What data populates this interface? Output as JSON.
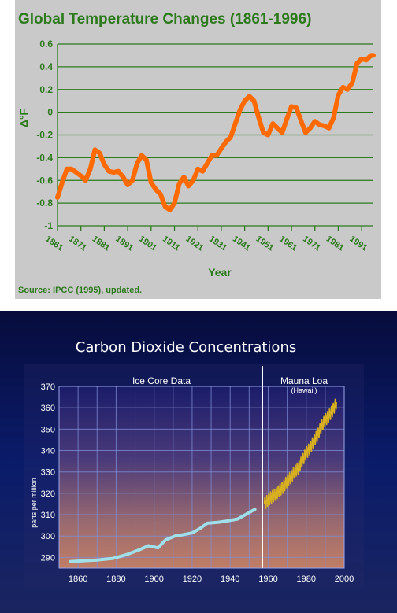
{
  "chart_data": [
    {
      "type": "line",
      "title": "Global Temperature Changes (1861-1996)",
      "xlabel": "Year",
      "ylabel": "Δ°F",
      "source": "Source: IPCC (1995), updated.",
      "xlim": [
        1861,
        1996
      ],
      "ylim": [
        -1,
        0.6
      ],
      "yticks": [
        "0.6",
        "0.4",
        "0.2",
        "0",
        "-0.2",
        "-0.4",
        "-0.6",
        "-0.8",
        "-1"
      ],
      "xticks": [
        "1861",
        "1871",
        "1881",
        "1891",
        "1901",
        "1911",
        "1921",
        "1931",
        "1941",
        "1951",
        "1961",
        "1971",
        "1981",
        "1991"
      ],
      "grid": true,
      "color": "#ff6a00",
      "series": [
        {
          "x": [
            1861,
            1863,
            1865,
            1867,
            1869,
            1871,
            1873,
            1875,
            1877,
            1879,
            1881,
            1883,
            1885,
            1887,
            1889,
            1891,
            1893,
            1895,
            1897,
            1899,
            1901,
            1903,
            1905,
            1907,
            1909,
            1911,
            1913,
            1915,
            1917,
            1919,
            1921,
            1923,
            1925,
            1927,
            1929,
            1931,
            1933,
            1935,
            1937,
            1939,
            1941,
            1943,
            1945,
            1947,
            1949,
            1951,
            1953,
            1955,
            1957,
            1959,
            1961,
            1963,
            1965,
            1967,
            1969,
            1971,
            1973,
            1975,
            1977,
            1979,
            1981,
            1983,
            1985,
            1987,
            1989,
            1991,
            1993,
            1995,
            1996
          ],
          "y": [
            -0.75,
            -0.62,
            -0.5,
            -0.5,
            -0.53,
            -0.56,
            -0.6,
            -0.5,
            -0.33,
            -0.36,
            -0.46,
            -0.52,
            -0.53,
            -0.52,
            -0.57,
            -0.64,
            -0.6,
            -0.45,
            -0.38,
            -0.42,
            -0.62,
            -0.68,
            -0.72,
            -0.83,
            -0.86,
            -0.8,
            -0.63,
            -0.57,
            -0.65,
            -0.6,
            -0.5,
            -0.52,
            -0.45,
            -0.38,
            -0.38,
            -0.32,
            -0.26,
            -0.22,
            -0.1,
            0.02,
            0.1,
            0.14,
            0.1,
            -0.05,
            -0.18,
            -0.2,
            -0.1,
            -0.14,
            -0.18,
            -0.06,
            0.05,
            0.04,
            -0.07,
            -0.18,
            -0.14,
            -0.08,
            -0.11,
            -0.12,
            -0.14,
            -0.05,
            0.15,
            0.22,
            0.2,
            0.26,
            0.43,
            0.47,
            0.46,
            0.5,
            0.5
          ]
        }
      ]
    },
    {
      "type": "line",
      "title": "Carbon Dioxide Concentrations",
      "ylabel": "parts per million",
      "xlim": [
        1850,
        2000
      ],
      "ylim": [
        285,
        370
      ],
      "yticks": [
        "370",
        "360",
        "350",
        "340",
        "330",
        "320",
        "310",
        "300",
        "290"
      ],
      "xticks": [
        "1860",
        "1880",
        "1900",
        "1920",
        "1940",
        "1960",
        "1980",
        "2000"
      ],
      "grid": true,
      "annotations": [
        "Ice Core Data",
        "Mauna Loa",
        "(Hawaii)"
      ],
      "series": [
        {
          "name": "Ice Core Data",
          "color": "#9fe0ea",
          "x": [
            1856,
            1862,
            1870,
            1878,
            1885,
            1892,
            1897,
            1902,
            1906,
            1911,
            1915,
            1920,
            1924,
            1928,
            1934,
            1938,
            1944,
            1948,
            1953
          ],
          "y": [
            288,
            288.4,
            288.8,
            289.5,
            291.2,
            293.5,
            295.5,
            294.5,
            298.2,
            300,
            300.6,
            301.5,
            303.5,
            306,
            306.5,
            307,
            308,
            310,
            312.5
          ]
        },
        {
          "name": "Mauna Loa",
          "color": "#d8b020",
          "x": [
            1958,
            1960,
            1962,
            1964,
            1966,
            1968,
            1970,
            1972,
            1974,
            1976,
            1978,
            1980,
            1982,
            1984,
            1986,
            1988,
            1990,
            1992,
            1994,
            1996
          ],
          "y": [
            315,
            316.9,
            318.4,
            319.6,
            321.4,
            323,
            325.7,
            327.5,
            330.2,
            332,
            335.4,
            338.7,
            341.1,
            344.4,
            347.2,
            351.3,
            354.2,
            356.3,
            358.9,
            362.6
          ],
          "seasonal_amplitude": 3
        }
      ]
    }
  ]
}
